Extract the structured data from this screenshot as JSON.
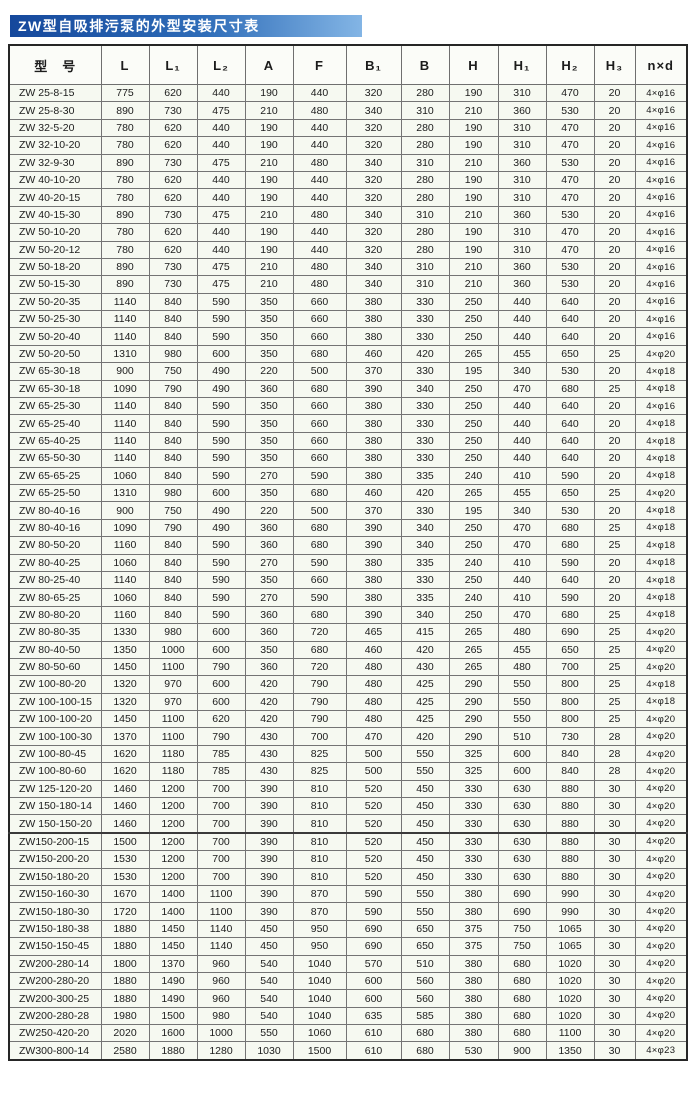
{
  "title": "ZW型自吸排污泵的外型安装尺寸表",
  "colors": {
    "title_gradient_start": "#15489c",
    "title_gradient_end": "#83b5e5",
    "title_text": "#ffffff",
    "table_outer_border": "#262626",
    "grid_line": "#747474",
    "cell_background": "#f6f9f1",
    "text": "#1c1c1c"
  },
  "table": {
    "columns": [
      "型　号",
      "L",
      "L₁",
      "L₂",
      "A",
      "F",
      "B₁",
      "B",
      "H",
      "H₁",
      "H₂",
      "H₃",
      "n×d"
    ],
    "thick_separator_row_index": 43,
    "rows": [
      [
        "ZW 25-8-15",
        "775",
        "620",
        "440",
        "190",
        "440",
        "320",
        "280",
        "190",
        "310",
        "470",
        "20",
        "4×φ16"
      ],
      [
        "ZW 25-8-30",
        "890",
        "730",
        "475",
        "210",
        "480",
        "340",
        "310",
        "210",
        "360",
        "530",
        "20",
        "4×φ16"
      ],
      [
        "ZW 32-5-20",
        "780",
        "620",
        "440",
        "190",
        "440",
        "320",
        "280",
        "190",
        "310",
        "470",
        "20",
        "4×φ16"
      ],
      [
        "ZW 32-10-20",
        "780",
        "620",
        "440",
        "190",
        "440",
        "320",
        "280",
        "190",
        "310",
        "470",
        "20",
        "4×φ16"
      ],
      [
        "ZW 32-9-30",
        "890",
        "730",
        "475",
        "210",
        "480",
        "340",
        "310",
        "210",
        "360",
        "530",
        "20",
        "4×φ16"
      ],
      [
        "ZW 40-10-20",
        "780",
        "620",
        "440",
        "190",
        "440",
        "320",
        "280",
        "190",
        "310",
        "470",
        "20",
        "4×φ16"
      ],
      [
        "ZW 40-20-15",
        "780",
        "620",
        "440",
        "190",
        "440",
        "320",
        "280",
        "190",
        "310",
        "470",
        "20",
        "4×φ16"
      ],
      [
        "ZW 40-15-30",
        "890",
        "730",
        "475",
        "210",
        "480",
        "340",
        "310",
        "210",
        "360",
        "530",
        "20",
        "4×φ16"
      ],
      [
        "ZW 50-10-20",
        "780",
        "620",
        "440",
        "190",
        "440",
        "320",
        "280",
        "190",
        "310",
        "470",
        "20",
        "4×φ16"
      ],
      [
        "ZW 50-20-12",
        "780",
        "620",
        "440",
        "190",
        "440",
        "320",
        "280",
        "190",
        "310",
        "470",
        "20",
        "4×φ16"
      ],
      [
        "ZW 50-18-20",
        "890",
        "730",
        "475",
        "210",
        "480",
        "340",
        "310",
        "210",
        "360",
        "530",
        "20",
        "4×φ16"
      ],
      [
        "ZW 50-15-30",
        "890",
        "730",
        "475",
        "210",
        "480",
        "340",
        "310",
        "210",
        "360",
        "530",
        "20",
        "4×φ16"
      ],
      [
        "ZW 50-20-35",
        "1140",
        "840",
        "590",
        "350",
        "660",
        "380",
        "330",
        "250",
        "440",
        "640",
        "20",
        "4×φ16"
      ],
      [
        "ZW 50-25-30",
        "1140",
        "840",
        "590",
        "350",
        "660",
        "380",
        "330",
        "250",
        "440",
        "640",
        "20",
        "4×φ16"
      ],
      [
        "ZW 50-20-40",
        "1140",
        "840",
        "590",
        "350",
        "660",
        "380",
        "330",
        "250",
        "440",
        "640",
        "20",
        "4×φ16"
      ],
      [
        "ZW 50-20-50",
        "1310",
        "980",
        "600",
        "350",
        "680",
        "460",
        "420",
        "265",
        "455",
        "650",
        "25",
        "4×φ20"
      ],
      [
        "ZW 65-30-18",
        "900",
        "750",
        "490",
        "220",
        "500",
        "370",
        "330",
        "195",
        "340",
        "530",
        "20",
        "4×φ18"
      ],
      [
        "ZW 65-30-18",
        "1090",
        "790",
        "490",
        "360",
        "680",
        "390",
        "340",
        "250",
        "470",
        "680",
        "25",
        "4×φ18"
      ],
      [
        "ZW 65-25-30",
        "1140",
        "840",
        "590",
        "350",
        "660",
        "380",
        "330",
        "250",
        "440",
        "640",
        "20",
        "4×φ16"
      ],
      [
        "ZW 65-25-40",
        "1140",
        "840",
        "590",
        "350",
        "660",
        "380",
        "330",
        "250",
        "440",
        "640",
        "20",
        "4×φ18"
      ],
      [
        "ZW 65-40-25",
        "1140",
        "840",
        "590",
        "350",
        "660",
        "380",
        "330",
        "250",
        "440",
        "640",
        "20",
        "4×φ18"
      ],
      [
        "ZW 65-50-30",
        "1140",
        "840",
        "590",
        "350",
        "660",
        "380",
        "330",
        "250",
        "440",
        "640",
        "20",
        "4×φ18"
      ],
      [
        "ZW 65-65-25",
        "1060",
        "840",
        "590",
        "270",
        "590",
        "380",
        "335",
        "240",
        "410",
        "590",
        "20",
        "4×φ18"
      ],
      [
        "ZW 65-25-50",
        "1310",
        "980",
        "600",
        "350",
        "680",
        "460",
        "420",
        "265",
        "455",
        "650",
        "25",
        "4×φ20"
      ],
      [
        "ZW 80-40-16",
        "900",
        "750",
        "490",
        "220",
        "500",
        "370",
        "330",
        "195",
        "340",
        "530",
        "20",
        "4×φ18"
      ],
      [
        "ZW 80-40-16",
        "1090",
        "790",
        "490",
        "360",
        "680",
        "390",
        "340",
        "250",
        "470",
        "680",
        "25",
        "4×φ18"
      ],
      [
        "ZW 80-50-20",
        "1160",
        "840",
        "590",
        "360",
        "680",
        "390",
        "340",
        "250",
        "470",
        "680",
        "25",
        "4×φ18"
      ],
      [
        "ZW 80-40-25",
        "1060",
        "840",
        "590",
        "270",
        "590",
        "380",
        "335",
        "240",
        "410",
        "590",
        "20",
        "4×φ18"
      ],
      [
        "ZW 80-25-40",
        "1140",
        "840",
        "590",
        "350",
        "660",
        "380",
        "330",
        "250",
        "440",
        "640",
        "20",
        "4×φ18"
      ],
      [
        "ZW 80-65-25",
        "1060",
        "840",
        "590",
        "270",
        "590",
        "380",
        "335",
        "240",
        "410",
        "590",
        "20",
        "4×φ18"
      ],
      [
        "ZW 80-80-20",
        "1160",
        "840",
        "590",
        "360",
        "680",
        "390",
        "340",
        "250",
        "470",
        "680",
        "25",
        "4×φ18"
      ],
      [
        "ZW 80-80-35",
        "1330",
        "980",
        "600",
        "360",
        "720",
        "465",
        "415",
        "265",
        "480",
        "690",
        "25",
        "4×φ20"
      ],
      [
        "ZW 80-40-50",
        "1350",
        "1000",
        "600",
        "350",
        "680",
        "460",
        "420",
        "265",
        "455",
        "650",
        "25",
        "4×φ20"
      ],
      [
        "ZW 80-50-60",
        "1450",
        "1100",
        "790",
        "360",
        "720",
        "480",
        "430",
        "265",
        "480",
        "700",
        "25",
        "4×φ20"
      ],
      [
        "ZW 100-80-20",
        "1320",
        "970",
        "600",
        "420",
        "790",
        "480",
        "425",
        "290",
        "550",
        "800",
        "25",
        "4×φ18"
      ],
      [
        "ZW 100-100-15",
        "1320",
        "970",
        "600",
        "420",
        "790",
        "480",
        "425",
        "290",
        "550",
        "800",
        "25",
        "4×φ18"
      ],
      [
        "ZW 100-100-20",
        "1450",
        "1100",
        "620",
        "420",
        "790",
        "480",
        "425",
        "290",
        "550",
        "800",
        "25",
        "4×φ20"
      ],
      [
        "ZW 100-100-30",
        "1370",
        "1100",
        "790",
        "430",
        "700",
        "470",
        "420",
        "290",
        "510",
        "730",
        "28",
        "4×φ20"
      ],
      [
        "ZW 100-80-45",
        "1620",
        "1180",
        "785",
        "430",
        "825",
        "500",
        "550",
        "325",
        "600",
        "840",
        "28",
        "4×φ20"
      ],
      [
        "ZW 100-80-60",
        "1620",
        "1180",
        "785",
        "430",
        "825",
        "500",
        "550",
        "325",
        "600",
        "840",
        "28",
        "4×φ20"
      ],
      [
        "ZW 125-120-20",
        "1460",
        "1200",
        "700",
        "390",
        "810",
        "520",
        "450",
        "330",
        "630",
        "880",
        "30",
        "4×φ20"
      ],
      [
        "ZW 150-180-14",
        "1460",
        "1200",
        "700",
        "390",
        "810",
        "520",
        "450",
        "330",
        "630",
        "880",
        "30",
        "4×φ20"
      ],
      [
        "ZW 150-150-20",
        "1460",
        "1200",
        "700",
        "390",
        "810",
        "520",
        "450",
        "330",
        "630",
        "880",
        "30",
        "4×φ20"
      ],
      [
        "ZW150-200-15",
        "1500",
        "1200",
        "700",
        "390",
        "810",
        "520",
        "450",
        "330",
        "630",
        "880",
        "30",
        "4×φ20"
      ],
      [
        "ZW150-200-20",
        "1530",
        "1200",
        "700",
        "390",
        "810",
        "520",
        "450",
        "330",
        "630",
        "880",
        "30",
        "4×φ20"
      ],
      [
        "ZW150-180-20",
        "1530",
        "1200",
        "700",
        "390",
        "810",
        "520",
        "450",
        "330",
        "630",
        "880",
        "30",
        "4×φ20"
      ],
      [
        "ZW150-160-30",
        "1670",
        "1400",
        "1100",
        "390",
        "870",
        "590",
        "550",
        "380",
        "690",
        "990",
        "30",
        "4×φ20"
      ],
      [
        "ZW150-180-30",
        "1720",
        "1400",
        "1100",
        "390",
        "870",
        "590",
        "550",
        "380",
        "690",
        "990",
        "30",
        "4×φ20"
      ],
      [
        "ZW150-180-38",
        "1880",
        "1450",
        "1140",
        "450",
        "950",
        "690",
        "650",
        "375",
        "750",
        "1065",
        "30",
        "4×φ20"
      ],
      [
        "ZW150-150-45",
        "1880",
        "1450",
        "1140",
        "450",
        "950",
        "690",
        "650",
        "375",
        "750",
        "1065",
        "30",
        "4×φ20"
      ],
      [
        "ZW200-280-14",
        "1800",
        "1370",
        "960",
        "540",
        "1040",
        "570",
        "510",
        "380",
        "680",
        "1020",
        "30",
        "4×φ20"
      ],
      [
        "ZW200-280-20",
        "1880",
        "1490",
        "960",
        "540",
        "1040",
        "600",
        "560",
        "380",
        "680",
        "1020",
        "30",
        "4×φ20"
      ],
      [
        "ZW200-300-25",
        "1880",
        "1490",
        "960",
        "540",
        "1040",
        "600",
        "560",
        "380",
        "680",
        "1020",
        "30",
        "4×φ20"
      ],
      [
        "ZW200-280-28",
        "1980",
        "1500",
        "980",
        "540",
        "1040",
        "635",
        "585",
        "380",
        "680",
        "1020",
        "30",
        "4×φ20"
      ],
      [
        "ZW250-420-20",
        "2020",
        "1600",
        "1000",
        "550",
        "1060",
        "610",
        "680",
        "380",
        "680",
        "1100",
        "30",
        "4×φ20"
      ],
      [
        "ZW300-800-14",
        "2580",
        "1880",
        "1280",
        "1030",
        "1500",
        "610",
        "680",
        "530",
        "900",
        "1350",
        "30",
        "4×φ23"
      ]
    ]
  }
}
